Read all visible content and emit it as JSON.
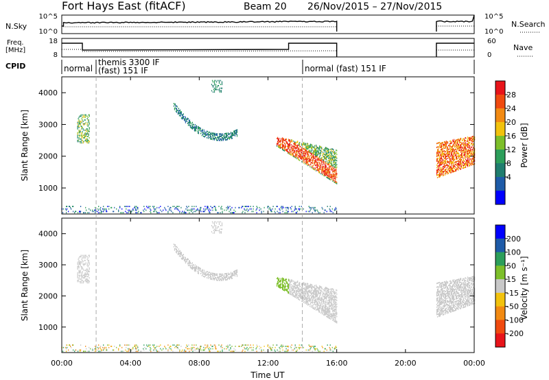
{
  "header": {
    "title": "Fort Hays East (fitACF)",
    "beam": "Beam 20",
    "dates": "26/Nov/2015 – 27/Nov/2015"
  },
  "noise_panel": {
    "left_label": "N.Sky",
    "right_label": "N.Search",
    "ticks": [
      "10^5",
      "10^0"
    ]
  },
  "freq_panel": {
    "left_label": "Freq.",
    "left_unit": "[MHz]",
    "left_ticks": [
      "18",
      "8"
    ],
    "right_label": "Nave",
    "right_ticks": [
      "60",
      "0"
    ]
  },
  "cpid_panel": {
    "label": "CPID",
    "modes": [
      {
        "text": "normal",
        "start": 0.0
      },
      {
        "text": "themis 3300 IF",
        "start": 2.0,
        "second_line": "(fast) 151 IF"
      },
      {
        "text": "normal (fast) 151 IF",
        "start": 14.0
      }
    ]
  },
  "colors": {
    "power": [
      "#0000ff",
      "#1e5ba8",
      "#1f7d6e",
      "#2c9e5a",
      "#7dbf2a",
      "#f2c20d",
      "#f28a12",
      "#f04a0f",
      "#e8141a"
    ],
    "velocity": [
      "#0000ff",
      "#1e5ba8",
      "#2c9e5a",
      "#7dbf2a",
      "#c8c8c8",
      "#f2c20d",
      "#f28a12",
      "#f04a0f",
      "#e8141a"
    ]
  },
  "chart_data": [
    {
      "type": "heatmap",
      "panel": "power",
      "xlabel": "",
      "ylabel": "Slant Range [km]",
      "xlim": [
        0,
        24
      ],
      "ylim": [
        180,
        4500
      ],
      "yticks": [
        "1000",
        "2000",
        "3000",
        "4000"
      ],
      "colorbar": {
        "label": "Power [dB]",
        "range": [
          0,
          32
        ],
        "ticks": [
          "28",
          "24",
          "20",
          "16",
          "12",
          "8",
          "4"
        ]
      },
      "features": [
        {
          "name": "near-range scatter",
          "t": [
            0.0,
            16.0
          ],
          "range": [
            200,
            420
          ],
          "level": "low"
        },
        {
          "name": "early patch",
          "t": [
            0.9,
            1.6
          ],
          "range": [
            2400,
            3300
          ],
          "level": "medium"
        },
        {
          "name": "arc",
          "t": [
            6.5,
            10.2
          ],
          "range": [
            2500,
            3600
          ],
          "level": "low"
        },
        {
          "name": "top patch",
          "t": [
            8.7,
            9.3
          ],
          "range": [
            4000,
            4400
          ],
          "level": "low"
        },
        {
          "name": "afternoon band",
          "t": [
            12.5,
            16.0
          ],
          "range": [
            1000,
            2600
          ],
          "level": "high"
        },
        {
          "name": "evening band",
          "t": [
            21.8,
            24.0
          ],
          "range": [
            1300,
            2600
          ],
          "level": "high"
        }
      ]
    },
    {
      "type": "heatmap",
      "panel": "velocity",
      "xlabel": "Time UT",
      "ylabel": "Slant Range [km]",
      "xlim": [
        0,
        24
      ],
      "ylim": [
        180,
        4500
      ],
      "xticks": [
        "00:00",
        "04:00",
        "08:00",
        "12:00",
        "16:00",
        "20:00",
        "00:00"
      ],
      "yticks": [
        "1000",
        "2000",
        "3000",
        "4000"
      ],
      "colorbar": {
        "label": "Velocity [m s⁻¹]",
        "ticks": [
          "200",
          "100",
          "50",
          "15",
          "-15",
          "-50",
          "-100",
          "-200"
        ]
      }
    }
  ]
}
